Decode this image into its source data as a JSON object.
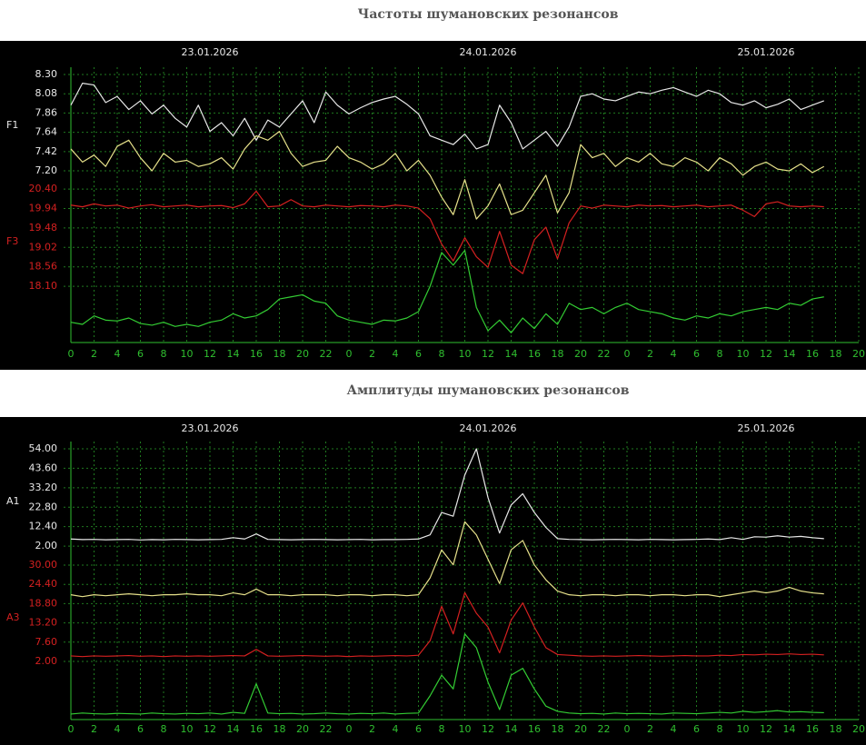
{
  "chart_data": [
    {
      "type": "line",
      "title": "Частоты шумановских резонансов",
      "dates": [
        "23.01.2026",
        "24.01.2026",
        "25.01.2026"
      ],
      "y_label": "F1",
      "y2_label": "F3",
      "x": [
        0,
        1,
        2,
        3,
        4,
        5,
        6,
        7,
        8,
        9,
        10,
        11,
        12,
        13,
        14,
        15,
        16,
        17,
        18,
        19,
        20,
        21,
        22,
        23,
        24,
        25,
        26,
        27,
        28,
        29,
        30,
        31,
        32,
        33,
        34,
        35,
        36,
        37,
        38,
        39,
        40,
        41,
        42,
        43,
        44,
        45,
        46,
        47,
        48,
        49,
        50,
        51,
        52,
        53,
        54,
        55,
        56,
        57,
        58,
        59,
        60,
        61,
        62,
        63,
        64,
        65
      ],
      "xlim": [
        0,
        68
      ],
      "xticks": [
        0,
        2,
        4,
        6,
        8,
        10,
        12,
        14,
        16,
        18,
        20,
        22,
        {
          "value": 24,
          "label": "0"
        },
        {
          "value": 26,
          "label": "2"
        },
        {
          "value": 28,
          "label": "4"
        },
        {
          "value": 30,
          "label": "6"
        },
        {
          "value": 32,
          "label": "8"
        },
        {
          "value": 34,
          "label": "10"
        },
        {
          "value": 36,
          "label": "12"
        },
        {
          "value": 38,
          "label": "14"
        },
        {
          "value": 40,
          "label": "16"
        },
        {
          "value": 42,
          "label": "18"
        },
        {
          "value": 44,
          "label": "20"
        },
        {
          "value": 46,
          "label": "22"
        },
        {
          "value": 48,
          "label": "0"
        },
        {
          "value": 50,
          "label": "2"
        },
        {
          "value": 52,
          "label": "4"
        },
        {
          "value": 54,
          "label": "6"
        },
        {
          "value": 56,
          "label": "8"
        },
        {
          "value": 58,
          "label": "10"
        },
        {
          "value": 60,
          "label": "12"
        },
        {
          "value": 62,
          "label": "14"
        },
        {
          "value": 64,
          "label": "16"
        },
        {
          "value": 66,
          "label": "18"
        },
        {
          "value": 68,
          "label": "20"
        }
      ],
      "ylim": [
        5.24,
        8.3
      ],
      "yticks": [
        {
          "value": 8.3,
          "label": "8.30"
        },
        8.08,
        7.86,
        7.64,
        7.42,
        {
          "value": 7.2,
          "label": "7.20"
        }
      ],
      "y2lim": [
        16.77,
        23.11
      ],
      "y2ticks": [
        {
          "value": 20.4,
          "label": "20.40"
        },
        19.94,
        19.48,
        19.02,
        18.56,
        {
          "value": 18.1,
          "label": "18.10"
        }
      ],
      "grid": true,
      "series": [
        {
          "color": "#e8e8e8",
          "values": [
            7.95,
            8.2,
            8.18,
            7.98,
            8.05,
            7.9,
            8.0,
            7.85,
            7.95,
            7.8,
            7.7,
            7.95,
            7.65,
            7.75,
            7.6,
            7.8,
            7.55,
            7.78,
            7.7,
            7.85,
            8.0,
            7.75,
            8.1,
            7.95,
            7.85,
            7.92,
            7.98,
            8.02,
            8.05,
            7.96,
            7.85,
            7.6,
            7.55,
            7.5,
            7.62,
            7.45,
            7.5,
            7.95,
            7.75,
            7.45,
            7.55,
            7.65,
            7.48,
            7.7,
            8.05,
            8.08,
            8.02,
            8.0,
            8.05,
            8.1,
            8.08,
            8.12,
            8.15,
            8.1,
            8.05,
            8.12,
            8.08,
            7.98,
            7.95,
            8.0,
            7.92,
            7.96,
            8.02,
            7.9,
            7.95,
            8.0
          ]
        },
        {
          "color": "#e6e08a",
          "values": [
            7.45,
            7.3,
            7.38,
            7.25,
            7.48,
            7.55,
            7.35,
            7.2,
            7.4,
            7.3,
            7.32,
            7.25,
            7.28,
            7.35,
            7.22,
            7.45,
            7.6,
            7.55,
            7.65,
            7.4,
            7.25,
            7.3,
            7.32,
            7.48,
            7.35,
            7.3,
            7.22,
            7.28,
            7.4,
            7.2,
            7.32,
            7.15,
            6.9,
            6.7,
            7.1,
            6.65,
            6.8,
            7.05,
            6.7,
            6.75,
            6.95,
            7.15,
            6.72,
            6.95,
            7.5,
            7.35,
            7.4,
            7.25,
            7.35,
            7.3,
            7.4,
            7.28,
            7.25,
            7.35,
            7.3,
            7.2,
            7.35,
            7.28,
            7.15,
            7.25,
            7.3,
            7.22,
            7.2,
            7.28,
            7.18,
            7.25
          ]
        },
        {
          "color": "#d42020",
          "axis": "y2",
          "values": [
            20.02,
            19.98,
            20.05,
            20.0,
            20.02,
            19.95,
            20.0,
            20.03,
            19.98,
            20.0,
            20.02,
            19.98,
            20.0,
            20.01,
            19.96,
            20.05,
            20.35,
            19.98,
            20.0,
            20.15,
            20.0,
            19.98,
            20.02,
            20.0,
            19.98,
            20.01,
            20.0,
            19.98,
            20.02,
            20.0,
            19.95,
            19.7,
            19.1,
            18.7,
            19.25,
            18.8,
            18.55,
            19.4,
            18.6,
            18.4,
            19.2,
            19.5,
            18.75,
            19.6,
            20.0,
            19.95,
            20.02,
            20.0,
            19.98,
            20.02,
            20.0,
            20.01,
            19.98,
            20.0,
            20.02,
            19.98,
            20.0,
            20.02,
            19.9,
            19.75,
            20.05,
            20.1,
            20.0,
            19.98,
            20.0,
            19.98
          ]
        },
        {
          "color": "#33cc33",
          "axis": "y2",
          "values": [
            17.25,
            17.2,
            17.4,
            17.3,
            17.28,
            17.35,
            17.22,
            17.18,
            17.25,
            17.15,
            17.2,
            17.15,
            17.25,
            17.3,
            17.45,
            17.35,
            17.4,
            17.55,
            17.8,
            17.85,
            17.9,
            17.75,
            17.7,
            17.4,
            17.3,
            17.25,
            17.2,
            17.3,
            17.28,
            17.35,
            17.5,
            18.1,
            18.9,
            18.6,
            18.95,
            17.6,
            17.05,
            17.3,
            17.0,
            17.35,
            17.1,
            17.45,
            17.2,
            17.7,
            17.55,
            17.6,
            17.45,
            17.6,
            17.7,
            17.55,
            17.5,
            17.45,
            17.35,
            17.3,
            17.4,
            17.35,
            17.45,
            17.4,
            17.5,
            17.55,
            17.6,
            17.55,
            17.7,
            17.65,
            17.8,
            17.85
          ]
        }
      ]
    },
    {
      "type": "line",
      "title": "Амплитуды шумановских резонансов",
      "dates": [
        "23.01.2026",
        "24.01.2026",
        "25.01.2026"
      ],
      "y_label": "A1",
      "y2_label": "A3",
      "x": [
        0,
        1,
        2,
        3,
        4,
        5,
        6,
        7,
        8,
        9,
        10,
        11,
        12,
        13,
        14,
        15,
        16,
        17,
        18,
        19,
        20,
        21,
        22,
        23,
        24,
        25,
        26,
        27,
        28,
        29,
        30,
        31,
        32,
        33,
        34,
        35,
        36,
        37,
        38,
        39,
        40,
        41,
        42,
        43,
        44,
        45,
        46,
        47,
        48,
        49,
        50,
        51,
        52,
        53,
        54,
        55,
        56,
        57,
        58,
        59,
        60,
        61,
        62,
        63,
        64,
        65
      ],
      "xlim": [
        0,
        68
      ],
      "xticks": [
        0,
        2,
        4,
        6,
        8,
        10,
        12,
        14,
        16,
        18,
        20,
        22,
        {
          "value": 24,
          "label": "0"
        },
        {
          "value": 26,
          "label": "2"
        },
        {
          "value": 28,
          "label": "4"
        },
        {
          "value": 30,
          "label": "6"
        },
        {
          "value": 32,
          "label": "8"
        },
        {
          "value": 34,
          "label": "10"
        },
        {
          "value": 36,
          "label": "12"
        },
        {
          "value": 38,
          "label": "14"
        },
        {
          "value": 40,
          "label": "16"
        },
        {
          "value": 42,
          "label": "18"
        },
        {
          "value": 44,
          "label": "20"
        },
        {
          "value": 46,
          "label": "22"
        },
        {
          "value": 48,
          "label": "0"
        },
        {
          "value": 50,
          "label": "2"
        },
        {
          "value": 52,
          "label": "4"
        },
        {
          "value": 54,
          "label": "6"
        },
        {
          "value": 56,
          "label": "8"
        },
        {
          "value": 58,
          "label": "10"
        },
        {
          "value": 60,
          "label": "12"
        },
        {
          "value": 62,
          "label": "14"
        },
        {
          "value": 64,
          "label": "16"
        },
        {
          "value": 66,
          "label": "18"
        },
        {
          "value": 68,
          "label": "20"
        }
      ],
      "ylim": [
        -90.7,
        54
      ],
      "yticks": [
        {
          "value": 54,
          "label": "54.00"
        },
        {
          "value": 43.6,
          "label": "43.60"
        },
        {
          "value": 33.2,
          "label": "33.20"
        },
        {
          "value": 22.8,
          "label": "22.80"
        },
        {
          "value": 12.4,
          "label": "12.40"
        },
        {
          "value": 2,
          "label": "2.00"
        }
      ],
      "y2lim": [
        -14.9,
        63.8
      ],
      "y2ticks": [
        {
          "value": 30,
          "label": "30.00"
        },
        {
          "value": 24.4,
          "label": "24.40"
        },
        {
          "value": 18.8,
          "label": "18.80"
        },
        {
          "value": 13.2,
          "label": "13.20"
        },
        {
          "value": 7.6,
          "label": "7.60"
        },
        {
          "value": 2,
          "label": "2.00"
        }
      ],
      "grid": true,
      "series": [
        {
          "color": "#e8e8e8",
          "values": [
            5.8,
            5.5,
            5.6,
            5.4,
            5.5,
            5.6,
            5.3,
            5.5,
            5.4,
            5.6,
            5.5,
            5.4,
            5.5,
            5.6,
            6.5,
            5.8,
            8.5,
            5.6,
            5.5,
            5.4,
            5.5,
            5.6,
            5.5,
            5.4,
            5.5,
            5.6,
            5.4,
            5.5,
            5.5,
            5.6,
            5.8,
            8.0,
            20.0,
            18.0,
            40.0,
            54.0,
            28.0,
            9.0,
            24.0,
            30.0,
            20.0,
            12.0,
            6.0,
            5.6,
            5.5,
            5.4,
            5.5,
            5.6,
            5.5,
            5.4,
            5.6,
            5.5,
            5.4,
            5.5,
            5.6,
            5.8,
            5.5,
            6.5,
            5.6,
            7.0,
            6.8,
            7.5,
            6.8,
            7.2,
            6.5,
            6.0
          ]
        },
        {
          "color": "#e6e08a",
          "values": [
            -24,
            -25,
            -24,
            -24.5,
            -24,
            -23.5,
            -24,
            -24.5,
            -24,
            -24,
            -23.5,
            -24,
            -24,
            -24.5,
            -23,
            -24,
            -21,
            -24,
            -24,
            -24.5,
            -24,
            -24,
            -24,
            -24.5,
            -24,
            -24,
            -24.5,
            -24,
            -24,
            -24.5,
            -24,
            -15,
            0,
            -8,
            15,
            8,
            -5,
            -18,
            0,
            5,
            -8,
            -16,
            -22,
            -24,
            -24.5,
            -24,
            -24,
            -24.5,
            -24,
            -24,
            -24.5,
            -24,
            -24,
            -24.5,
            -24,
            -24,
            -25,
            -24,
            -23,
            -22,
            -23,
            -22,
            -20,
            -22,
            -23,
            -23.5
          ]
        },
        {
          "color": "#d42020",
          "axis": "y2",
          "values": [
            3.6,
            3.4,
            3.6,
            3.5,
            3.6,
            3.7,
            3.5,
            3.6,
            3.4,
            3.6,
            3.5,
            3.6,
            3.5,
            3.6,
            3.7,
            3.6,
            5.5,
            3.6,
            3.5,
            3.6,
            3.7,
            3.6,
            3.5,
            3.6,
            3.4,
            3.6,
            3.5,
            3.6,
            3.7,
            3.6,
            3.8,
            8.0,
            18.0,
            10.0,
            22.0,
            16.0,
            12.0,
            4.5,
            14.0,
            19.0,
            12.0,
            6.0,
            4.0,
            3.8,
            3.6,
            3.5,
            3.6,
            3.5,
            3.6,
            3.7,
            3.6,
            3.5,
            3.6,
            3.7,
            3.6,
            3.6,
            3.8,
            3.7,
            4.0,
            3.9,
            4.1,
            4.0,
            4.2,
            4.0,
            4.1,
            3.9
          ]
        },
        {
          "color": "#33cc33",
          "axis": "y2",
          "values": [
            -13.3,
            -13.0,
            -13.2,
            -13.3,
            -13.1,
            -13.2,
            -13.3,
            -13.0,
            -13.2,
            -13.3,
            -13.1,
            -13.2,
            -13.0,
            -13.3,
            -12.8,
            -13.1,
            -4.5,
            -13.0,
            -13.2,
            -13.1,
            -13.3,
            -13.2,
            -13.0,
            -13.2,
            -13.3,
            -13.1,
            -13.2,
            -13.0,
            -13.3,
            -13.1,
            -13.0,
            -8.0,
            -2.0,
            -6.0,
            10.0,
            6.0,
            -4.0,
            -12.0,
            -2.0,
            0.0,
            -6.0,
            -11.0,
            -12.5,
            -13.0,
            -13.2,
            -13.1,
            -13.3,
            -13.0,
            -13.2,
            -13.1,
            -13.2,
            -13.3,
            -13.0,
            -13.1,
            -13.2,
            -13.0,
            -12.8,
            -13.0,
            -12.5,
            -12.8,
            -12.6,
            -12.3,
            -12.7,
            -12.6,
            -12.8,
            -12.9
          ]
        }
      ]
    }
  ]
}
